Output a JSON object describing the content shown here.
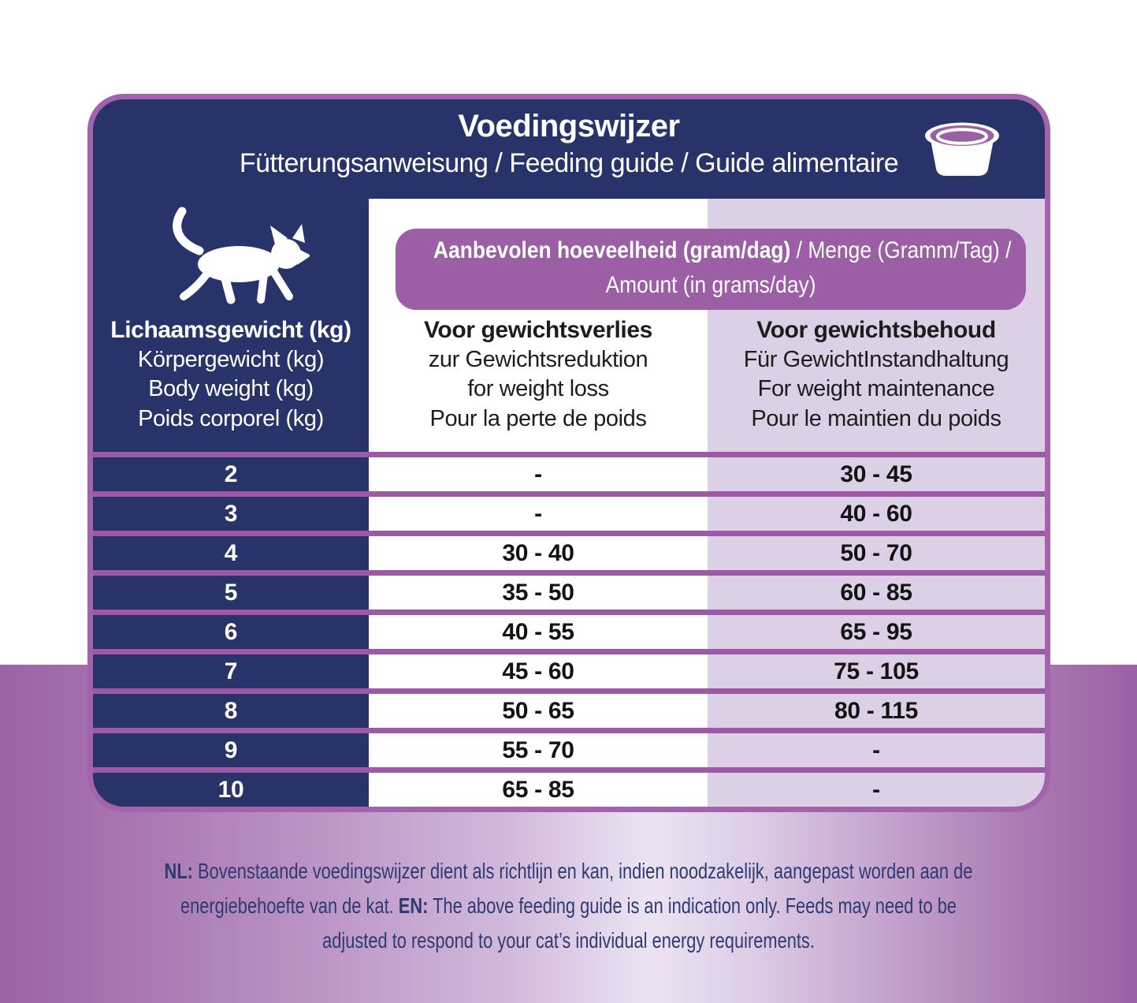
{
  "header": {
    "title": "Voedingswijzer",
    "subtitle": "Fütterungsanweisung / Feeding guide / Guide alimentaire"
  },
  "banner": {
    "line1_bold": "Aanbevolen hoeveelheid (gram/dag)",
    "line1_rest": " / Menge (Gramm/Tag) /",
    "line2": "Amount (in grams/day)"
  },
  "columns": {
    "weight": [
      "Lichaamsgewicht (kg)",
      "Körpergewicht (kg)",
      "Body weight (kg)",
      "Poids corporel (kg)"
    ],
    "loss": [
      "Voor gewichtsverlies",
      "zur Gewichtsreduktion",
      "for weight loss",
      "Pour la perte de poids"
    ],
    "maintenance": [
      "Voor gewichtsbehoud",
      "Für GewichtInstandhaltung",
      "For weight maintenance",
      "Pour le maintien du poids"
    ]
  },
  "table": {
    "rows": [
      {
        "weight": "2",
        "loss": "-",
        "maintenance": "30 - 45"
      },
      {
        "weight": "3",
        "loss": "-",
        "maintenance": "40 - 60"
      },
      {
        "weight": "4",
        "loss": "30 - 40",
        "maintenance": "50 - 70"
      },
      {
        "weight": "5",
        "loss": "35 - 50",
        "maintenance": "60 - 85"
      },
      {
        "weight": "6",
        "loss": "40 - 55",
        "maintenance": "65 - 95"
      },
      {
        "weight": "7",
        "loss": "45 - 60",
        "maintenance": "75 - 105"
      },
      {
        "weight": "8",
        "loss": "50 - 65",
        "maintenance": "80 - 115"
      },
      {
        "weight": "9",
        "loss": "55 - 70",
        "maintenance": "-"
      },
      {
        "weight": "10",
        "loss": "65 - 85",
        "maintenance": "-"
      }
    ]
  },
  "footnote": {
    "lines": [
      [
        [
          "b",
          "NL:"
        ],
        [
          "t",
          " Bovenstaande voedingswijzer dient als richtlijn en kan, indien noodzakelijk, aangepast worden aan de"
        ]
      ],
      [
        [
          "t",
          "energiebehoefte van de kat. "
        ],
        [
          "b",
          "EN:"
        ],
        [
          "t",
          " The above feeding guide is an indication only. Feeds may need to be"
        ]
      ],
      [
        [
          "t",
          "adjusted to respond to your cat’s individual energy requirements."
        ]
      ]
    ]
  },
  "icons": {
    "cat": "cat-silhouette-icon",
    "bowl": "food-bowl-icon"
  },
  "colors": {
    "navy": "#28336a",
    "card_border": "#a263ab",
    "row_separator": "#9d59a5",
    "banner_purple": "#9c5fa5",
    "light_purple_column": "#dcd0e7",
    "footnote_text": "#2e3a72",
    "value_text": "#131313",
    "background_gradient_dark": "#9c62a6",
    "background_gradient_light": "#ece3f2"
  }
}
